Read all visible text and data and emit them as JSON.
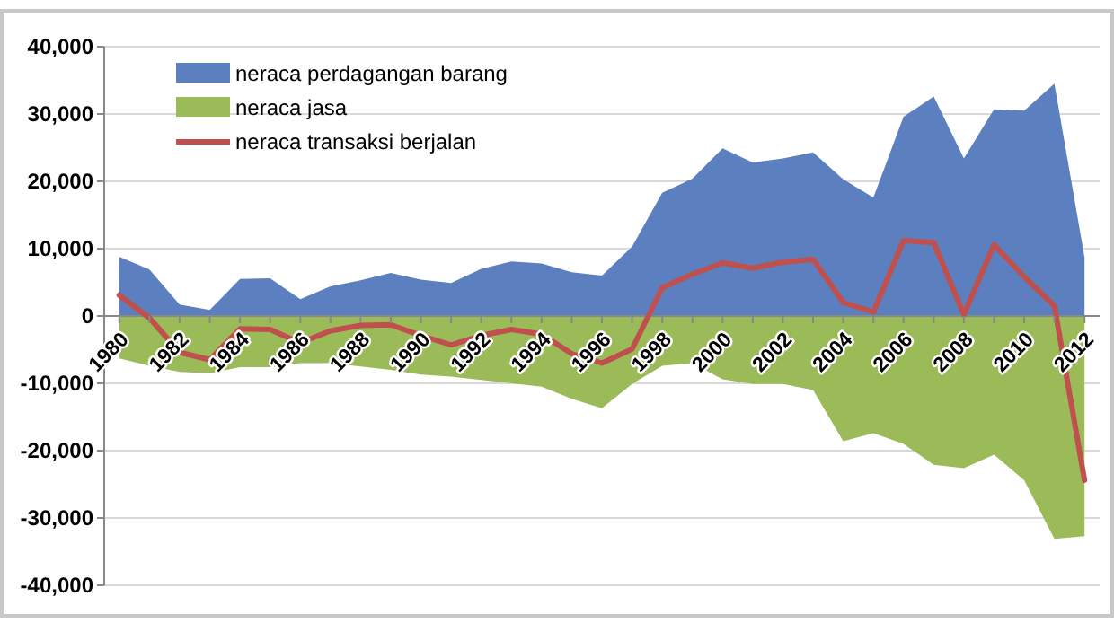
{
  "chart_data": {
    "type": "area",
    "x": [
      1980,
      1981,
      1982,
      1983,
      1984,
      1985,
      1986,
      1987,
      1988,
      1989,
      1990,
      1991,
      1992,
      1993,
      1994,
      1995,
      1996,
      1997,
      1998,
      1999,
      2000,
      2001,
      2002,
      2003,
      2004,
      2005,
      2006,
      2007,
      2008,
      2009,
      2010,
      2011,
      2012
    ],
    "series": [
      {
        "name": "neraca perdagangan barang",
        "color": "#5b7fbf",
        "values": [
          8800,
          6900,
          1700,
          900,
          5500,
          5600,
          2500,
          4400,
          5300,
          6400,
          5400,
          4900,
          7000,
          8100,
          7800,
          6500,
          6000,
          10300,
          18300,
          20400,
          24900,
          22800,
          23400,
          24300,
          20300,
          17600,
          29600,
          32600,
          23400,
          30700,
          30500,
          34500,
          8700
        ]
      },
      {
        "name": "neraca jasa",
        "color": "#9bbb59",
        "values": [
          -6300,
          -7400,
          -8300,
          -8500,
          -7600,
          -7600,
          -7000,
          -7000,
          -7500,
          -8000,
          -8700,
          -9000,
          -9500,
          -10000,
          -10500,
          -12300,
          -13700,
          -10100,
          -7400,
          -7000,
          -9400,
          -10100,
          -10100,
          -11000,
          -18600,
          -17400,
          -19000,
          -22100,
          -22600,
          -20600,
          -24400,
          -33100,
          -32700
        ]
      },
      {
        "name": "neraca transaksi berjalan",
        "type": "line",
        "color": "#c0504d",
        "values": [
          3100,
          -300,
          -5400,
          -6500,
          -1900,
          -2000,
          -4000,
          -2200,
          -1400,
          -1300,
          -2900,
          -4300,
          -2900,
          -2000,
          -2700,
          -5600,
          -7000,
          -4900,
          4200,
          6200,
          7900,
          7100,
          8000,
          8400,
          2000,
          600,
          11200,
          10900,
          200,
          10600,
          5800,
          1500,
          -24400
        ]
      }
    ],
    "xlim": [
      1979.5,
      2012.5
    ],
    "xticks": [
      1980,
      {
        "value": 1981,
        "label": null
      },
      1982,
      {
        "value": 1983,
        "label": null
      },
      1984,
      {
        "value": 1985,
        "label": null
      },
      1986,
      {
        "value": 1987,
        "label": null
      },
      1988,
      {
        "value": 1989,
        "label": null
      },
      1990,
      {
        "value": 1991,
        "label": null
      },
      1992,
      {
        "value": 1993,
        "label": null
      },
      1994,
      {
        "value": 1995,
        "label": null
      },
      1996,
      {
        "value": 1997,
        "label": null
      },
      1998,
      {
        "value": 1999,
        "label": null
      },
      2000,
      {
        "value": 2001,
        "label": null
      },
      2002,
      {
        "value": 2003,
        "label": null
      },
      2004,
      {
        "value": 2005,
        "label": null
      },
      2006,
      {
        "value": 2007,
        "label": null
      },
      2008,
      {
        "value": 2009,
        "label": null
      },
      2010,
      {
        "value": 2011,
        "label": null
      },
      2012
    ],
    "ylim": [
      -40000,
      40000
    ],
    "yticks": [
      {
        "value": -40000,
        "label": "-40,000"
      },
      {
        "value": -30000,
        "label": "-30,000"
      },
      {
        "value": -20000,
        "label": "-20,000"
      },
      {
        "value": -10000,
        "label": "-10,000"
      },
      0,
      {
        "value": 10000,
        "label": "10,000"
      },
      {
        "value": 20000,
        "label": "20,000"
      },
      {
        "value": 30000,
        "label": "30,000"
      },
      {
        "value": 40000,
        "label": "40,000"
      }
    ],
    "grid": "y",
    "legend": "top left"
  }
}
